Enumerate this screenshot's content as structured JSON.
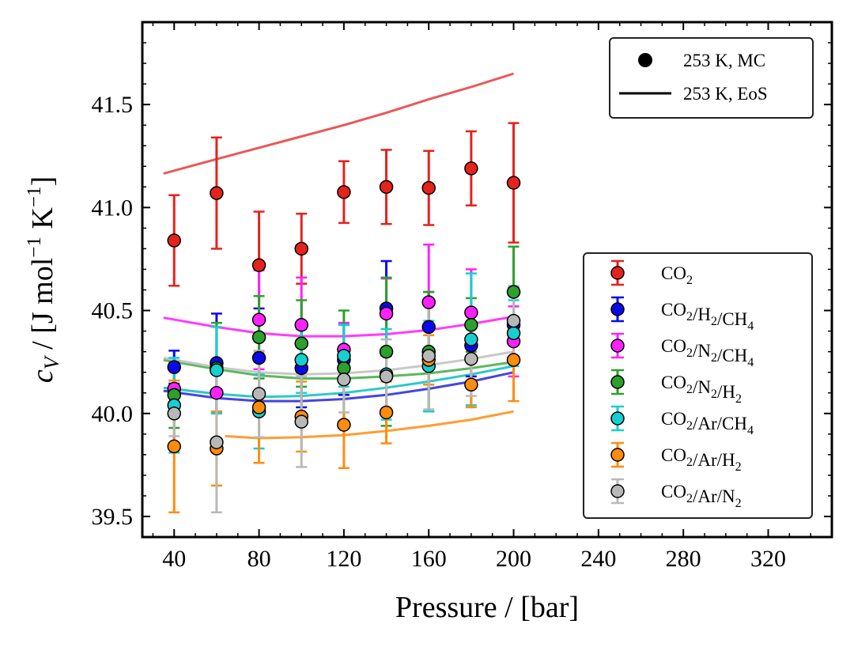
{
  "chart_data": {
    "type": "scatter",
    "xlabel": "Pressure / [bar]",
    "ylabel_parts": {
      "symbol": "c",
      "sub": "V",
      "prefix": " / [J mol",
      "exp1": "−1",
      "mid": " K",
      "exp2": "−1",
      "suffix": "]"
    },
    "xlim": [
      25,
      350
    ],
    "ylim": [
      39.4,
      41.9
    ],
    "xticks": [
      40,
      80,
      120,
      160,
      200,
      240,
      280,
      320
    ],
    "xtick_labels": [
      "40",
      "80",
      "120",
      "160",
      "200",
      "240",
      "280",
      "320"
    ],
    "yticks": [
      39.5,
      40.0,
      40.5,
      41.0,
      41.5
    ],
    "ytick_labels": [
      "39.5",
      "40.0",
      "40.5",
      "41.0",
      "41.5"
    ],
    "style_legend": {
      "position": "top-right",
      "entries": [
        {
          "marker": "circle",
          "label": "253 K, MC"
        },
        {
          "marker": "line",
          "label": "253 K, EoS"
        }
      ]
    },
    "series": [
      {
        "name": "CO2",
        "label_parts": [
          {
            "t": "CO"
          },
          {
            "t": "2",
            "sub": true
          }
        ],
        "color": "#e3231c",
        "line_color": "#e85959",
        "x": [
          40,
          60,
          80,
          100,
          120,
          140,
          160,
          180,
          200
        ],
        "y": [
          40.84,
          41.07,
          40.72,
          40.8,
          41.075,
          41.1,
          41.095,
          41.19,
          41.12
        ],
        "err": [
          0.22,
          0.27,
          0.26,
          0.17,
          0.15,
          0.18,
          0.18,
          0.18,
          0.29
        ],
        "eos_x": [
          35,
          60,
          80,
          100,
          120,
          140,
          160,
          180,
          200
        ],
        "eos_y": [
          41.165,
          41.235,
          41.29,
          41.345,
          41.4,
          41.46,
          41.525,
          41.585,
          41.65
        ]
      },
      {
        "name": "CO2/H2/CH4",
        "label_parts": [
          {
            "t": "CO"
          },
          {
            "t": "2",
            "sub": true
          },
          {
            "t": "/H"
          },
          {
            "t": "2",
            "sub": true
          },
          {
            "t": "/CH"
          },
          {
            "t": "4",
            "sub": true
          }
        ],
        "color": "#0a0ae8",
        "line_color": "#4545e0",
        "x": [
          40,
          60,
          80,
          100,
          120,
          140,
          160,
          180,
          200
        ],
        "y": [
          40.225,
          40.245,
          40.27,
          40.22,
          40.26,
          40.51,
          40.42,
          40.33,
          40.43
        ],
        "err": [
          0.08,
          0.24,
          0.24,
          0.19,
          0.17,
          0.23,
          0.17,
          0.15,
          0.18
        ],
        "eos_x": [
          35,
          60,
          80,
          100,
          120,
          140,
          160,
          180,
          200
        ],
        "eos_y": [
          40.11,
          40.075,
          40.06,
          40.06,
          40.07,
          40.09,
          40.12,
          40.155,
          40.2
        ]
      },
      {
        "name": "CO2/N2/CH4",
        "label_parts": [
          {
            "t": "CO"
          },
          {
            "t": "2",
            "sub": true
          },
          {
            "t": "/N"
          },
          {
            "t": "2",
            "sub": true
          },
          {
            "t": "/CH"
          },
          {
            "t": "4",
            "sub": true
          }
        ],
        "color": "#ff20ff",
        "line_color": "#ff3bff",
        "x": [
          40,
          60,
          80,
          100,
          120,
          140,
          160,
          180,
          200
        ],
        "y": [
          40.12,
          40.1,
          40.455,
          40.43,
          40.31,
          40.485,
          40.54,
          40.49,
          40.35
        ],
        "err": [
          0.12,
          0.1,
          0.24,
          0.23,
          0.13,
          0.17,
          0.28,
          0.21,
          0.17
        ],
        "eos_x": [
          35,
          60,
          80,
          100,
          120,
          140,
          160,
          180,
          200
        ],
        "eos_y": [
          40.465,
          40.42,
          40.39,
          40.375,
          40.375,
          40.385,
          40.405,
          40.435,
          40.47
        ]
      },
      {
        "name": "CO2/N2/H2",
        "label_parts": [
          {
            "t": "CO"
          },
          {
            "t": "2",
            "sub": true
          },
          {
            "t": "/N"
          },
          {
            "t": "2",
            "sub": true
          },
          {
            "t": "/H"
          },
          {
            "t": "2",
            "sub": true
          }
        ],
        "color": "#2ca02c",
        "line_color": "#5cb85c",
        "x": [
          40,
          60,
          80,
          100,
          120,
          140,
          160,
          180,
          200
        ],
        "y": [
          40.09,
          40.22,
          40.37,
          40.34,
          40.22,
          40.3,
          40.3,
          40.43,
          40.59
        ],
        "err": [
          0.16,
          0.22,
          0.2,
          0.21,
          0.28,
          0.36,
          0.29,
          0.13,
          0.22
        ],
        "eos_x": [
          35,
          60,
          80,
          100,
          120,
          140,
          160,
          180,
          200
        ],
        "eos_y": [
          40.26,
          40.215,
          40.185,
          40.17,
          40.17,
          40.18,
          40.195,
          40.22,
          40.25
        ]
      },
      {
        "name": "CO2/Ar/CH4",
        "label_parts": [
          {
            "t": "CO"
          },
          {
            "t": "2",
            "sub": true
          },
          {
            "t": "/Ar/CH"
          },
          {
            "t": "4",
            "sub": true
          }
        ],
        "color": "#17cfcf",
        "line_color": "#2ec8c8",
        "x": [
          40,
          60,
          80,
          100,
          120,
          140,
          160,
          180,
          200
        ],
        "y": [
          40.04,
          40.21,
          40.01,
          40.26,
          40.28,
          40.19,
          40.23,
          40.36,
          40.39
        ],
        "err": [
          0.23,
          0.21,
          0.18,
          0.16,
          0.15,
          0.22,
          0.22,
          0.32,
          0.16
        ],
        "eos_x": [
          35,
          60,
          80,
          100,
          120,
          140,
          160,
          180,
          200
        ],
        "eos_y": [
          40.125,
          40.095,
          40.08,
          40.085,
          40.1,
          40.125,
          40.155,
          40.19,
          40.23
        ]
      },
      {
        "name": "CO2/Ar/H2",
        "label_parts": [
          {
            "t": "CO"
          },
          {
            "t": "2",
            "sub": true
          },
          {
            "t": "/Ar/H"
          },
          {
            "t": "2",
            "sub": true
          }
        ],
        "color": "#ff8c0f",
        "line_color": "#ff9d33",
        "x": [
          40,
          60,
          80,
          100,
          120,
          140,
          160,
          180,
          200
        ],
        "y": [
          39.84,
          39.83,
          40.03,
          39.985,
          39.945,
          40.005,
          40.26,
          40.14,
          40.26
        ],
        "err": [
          0.32,
          0.18,
          0.27,
          0.17,
          0.21,
          0.15,
          0.12,
          0.11,
          0.2
        ],
        "eos_x": [
          64,
          80,
          100,
          120,
          140,
          160,
          180,
          200
        ],
        "eos_y": [
          39.89,
          39.88,
          39.885,
          39.895,
          39.915,
          39.94,
          39.97,
          40.01
        ]
      },
      {
        "name": "CO2/Ar/N2",
        "label_parts": [
          {
            "t": "CO"
          },
          {
            "t": "2",
            "sub": true
          },
          {
            "t": "/Ar/N"
          },
          {
            "t": "2",
            "sub": true
          }
        ],
        "color": "#b8b8b8",
        "line_color": "#c8c8c8",
        "x": [
          40,
          60,
          80,
          100,
          120,
          140,
          160,
          180,
          200
        ],
        "y": [
          40.0,
          39.86,
          40.095,
          39.96,
          40.165,
          40.18,
          40.28,
          40.265,
          40.45
        ],
        "err": [
          0.11,
          0.34,
          0.21,
          0.22,
          0.16,
          0.18,
          0.26,
          0.18,
          0.17
        ],
        "eos_x": [
          35,
          60,
          80,
          100,
          120,
          140,
          160,
          180,
          200
        ],
        "eos_y": [
          40.27,
          40.225,
          40.2,
          40.19,
          40.195,
          40.21,
          40.235,
          40.265,
          40.3
        ]
      }
    ]
  }
}
